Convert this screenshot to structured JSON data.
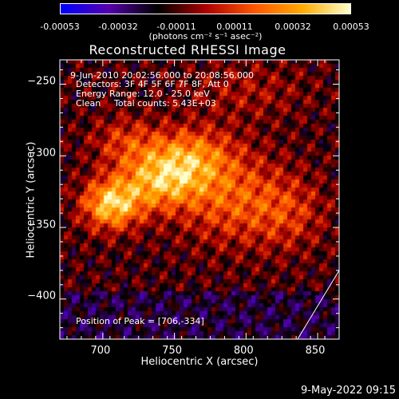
{
  "colorbar": {
    "ticks": [
      "-0.00053",
      "-0.00032",
      "-0.00011",
      "0.00011",
      "0.00032",
      "0.00053"
    ],
    "unit_label": "(photons cm⁻² s⁻¹ asec⁻²)"
  },
  "annotations": {
    "time_range": "9-Jun-2010 20:02:56.000 to 20:08:56.000",
    "detectors": "Detectors: 3F 4F 5F 6F 7F 8F, Att 0",
    "energy": "Energy Range: 12.0 - 25.0 keV",
    "clean_label": "Clean",
    "total_counts": "Total counts: 5.43E+03",
    "peak": "Position of Peak = [706,-334]"
  },
  "footer": {
    "date": "9-May-2022 09:15"
  },
  "chart_data": {
    "type": "heatmap",
    "title": "Reconstructed RHESSI Image",
    "xlabel": "Heliocentric X (arcsec)",
    "ylabel": "Heliocentric Y (arcsec)",
    "xlim": [
      670,
      865
    ],
    "ylim": [
      -428,
      -233
    ],
    "x_ticks": [
      700,
      750,
      800,
      850
    ],
    "y_ticks": [
      -250,
      -300,
      -350,
      -400
    ],
    "x_tick_labels": [
      "700",
      "750",
      "800",
      "850"
    ],
    "y_tick_labels": [
      "−250",
      "−300",
      "−350",
      "−400"
    ],
    "value_range": [
      -0.00053,
      0.00053
    ],
    "colormap": [
      "#0000ff",
      "#5500aa",
      "#000000",
      "#aa0000",
      "#ff5500",
      "#ffaa00",
      "#ffffcc"
    ],
    "peak": {
      "x": 706,
      "y": -334
    },
    "limb_line": [
      [
        836,
        -428
      ],
      [
        865,
        -380
      ]
    ],
    "source_blobs": [
      {
        "x": 706,
        "y": -334,
        "sx": 14,
        "sy": 12,
        "amp": 0.00053
      },
      {
        "x": 740,
        "y": -318,
        "sx": 20,
        "sy": 14,
        "amp": 0.00042
      },
      {
        "x": 760,
        "y": -300,
        "sx": 22,
        "sy": 14,
        "amp": 0.00034
      },
      {
        "x": 790,
        "y": -330,
        "sx": 26,
        "sy": 22,
        "amp": 0.00028
      },
      {
        "x": 830,
        "y": -340,
        "sx": 18,
        "sy": 18,
        "amp": 0.00018
      },
      {
        "x": 715,
        "y": -290,
        "sx": 16,
        "sy": 12,
        "amp": 0.0002
      },
      {
        "x": 800,
        "y": -255,
        "sx": 30,
        "sy": 14,
        "amp": 0.00012
      }
    ]
  }
}
